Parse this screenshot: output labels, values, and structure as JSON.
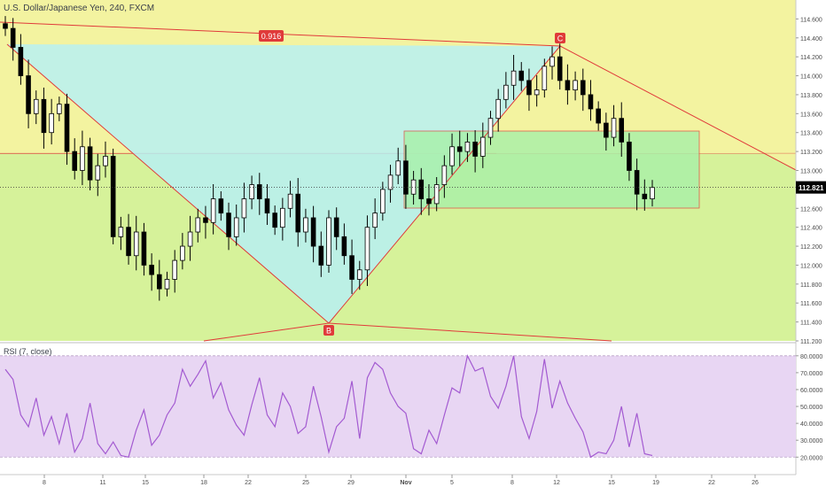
{
  "header": {
    "symbol_title": "U.S. Dollar/Japanese Yen, 240, FXCM"
  },
  "colors": {
    "up_candle": "#ffffff",
    "down_candle": "#000000",
    "pattern_line": "#e03a3a",
    "zone_upper": "#f3f3a0",
    "zone_lower": "#d6f29a",
    "zone_cyan": "#b7f0f2",
    "zone_green_box": "#a8f0a8",
    "rsi_line": "#a35ad1",
    "rsi_bg": "#e8d6f3",
    "price_label_bg": "#000000"
  },
  "chart_data": {
    "type": "candlestick",
    "title": "U.S. Dollar/Japanese Yen, 240, FXCM",
    "ylim": [
      111.2,
      114.8
    ],
    "last_price": "112.821",
    "y_ticks": [
      "114.600",
      "114.400",
      "114.200",
      "114.000",
      "113.800",
      "113.600",
      "113.400",
      "113.200",
      "113.000",
      "112.800",
      "112.600",
      "112.400",
      "112.200",
      "112.000",
      "111.800",
      "111.600",
      "111.400",
      "111.200"
    ],
    "x_ticks": [
      "8",
      "11",
      "15",
      "18",
      "22",
      "25",
      "29",
      "Nov",
      "5",
      "8",
      "12",
      "15",
      "19",
      "22",
      "26"
    ],
    "pattern_points": [
      {
        "label": "C",
        "x": "12",
        "y": 114.22
      },
      {
        "label": "B",
        "x": "28",
        "y": 111.38
      }
    ],
    "annotations": [
      {
        "text": "0.916"
      }
    ],
    "price_path": [
      114.5,
      114.3,
      114.0,
      113.6,
      113.75,
      113.4,
      113.6,
      113.7,
      113.2,
      113.0,
      113.25,
      112.9,
      113.05,
      113.15,
      112.3,
      112.4,
      112.1,
      112.35,
      112.0,
      111.9,
      111.75,
      111.85,
      112.05,
      112.2,
      112.35,
      112.5,
      112.45,
      112.7,
      112.55,
      112.3,
      112.5,
      112.7,
      112.85,
      112.7,
      112.55,
      112.4,
      112.6,
      112.75,
      112.35,
      112.5,
      112.2,
      112.0,
      112.5,
      112.3,
      112.1,
      111.85,
      111.95,
      112.4,
      112.55,
      112.8,
      112.95,
      113.1,
      112.75,
      112.9,
      112.7,
      112.65,
      112.85,
      113.05,
      113.25,
      113.2,
      113.3,
      113.15,
      113.35,
      113.55,
      113.75,
      113.9,
      114.05,
      113.95,
      113.8,
      113.85,
      114.1,
      114.2,
      113.95,
      113.85,
      113.95,
      113.8,
      113.65,
      113.5,
      113.35,
      113.55,
      113.3,
      113.0,
      112.75,
      112.7,
      112.82
    ],
    "rsi": {
      "label": "RSI (7, close)",
      "ylim": [
        17,
        82
      ],
      "y_ticks": [
        "80.0000",
        "70.0000",
        "60.0000",
        "50.0000",
        "40.0000",
        "30.0000",
        "20.0000"
      ],
      "values": [
        72,
        66,
        45,
        38,
        55,
        33,
        44,
        28,
        46,
        23,
        31,
        52,
        28,
        22,
        29,
        21,
        20,
        36,
        48,
        27,
        33,
        45,
        52,
        72,
        62,
        69,
        77,
        55,
        64,
        48,
        39,
        33,
        51,
        67,
        45,
        38,
        58,
        50,
        34,
        38,
        62,
        44,
        23,
        38,
        43,
        65,
        31,
        67,
        76,
        72,
        58,
        50,
        46,
        25,
        22,
        36,
        28,
        45,
        61,
        58,
        80,
        71,
        73,
        56,
        49,
        62,
        80,
        44,
        31,
        47,
        78,
        49,
        65,
        52,
        43,
        35,
        20,
        23,
        22,
        30,
        50,
        26,
        46,
        22,
        21
      ]
    }
  }
}
